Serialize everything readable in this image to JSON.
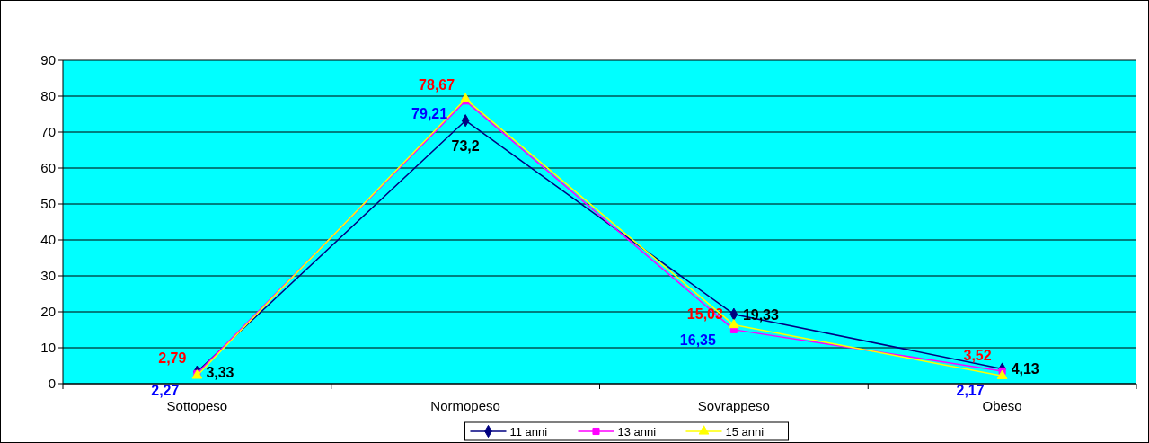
{
  "chart_data": {
    "type": "line",
    "categories": [
      "Sottopeso",
      "Normopeso",
      "Sovrappeso",
      "Obeso"
    ],
    "series": [
      {
        "name": "11 anni",
        "color": "#000080",
        "marker": "diamond",
        "values": [
          3.33,
          73.2,
          19.33,
          4.13
        ],
        "value_labels": [
          "3,33",
          "73,2",
          "19,33",
          "4,13"
        ]
      },
      {
        "name": "13 anni",
        "color": "#ff00ff",
        "marker": "square",
        "values": [
          2.79,
          78.67,
          15.03,
          3.52
        ],
        "value_labels": [
          "2,79",
          "78,67",
          "15,03",
          "3,52"
        ]
      },
      {
        "name": "15 anni",
        "color": "#ffff00",
        "marker": "triangle",
        "values": [
          2.27,
          79.21,
          16.35,
          2.17
        ],
        "value_labels": [
          "2,27",
          "79,21",
          "16,35",
          "2,17"
        ]
      }
    ],
    "ylim": [
      0,
      90
    ],
    "yticks": [
      0,
      10,
      20,
      30,
      40,
      50,
      60,
      70,
      80,
      90
    ],
    "grid": "y",
    "legend": "bottom",
    "line_style": "solid"
  }
}
